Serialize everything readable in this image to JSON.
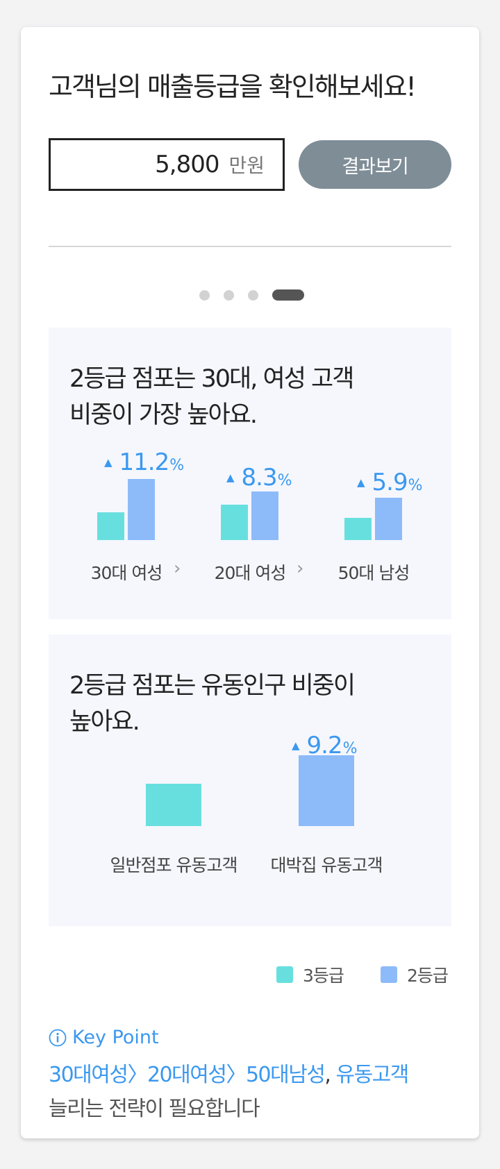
{
  "header": {
    "title": "고객님의 매출등급을 확인해보세요!"
  },
  "input": {
    "value": "5,800",
    "unit": "만원"
  },
  "result_button": {
    "label": "결과보기"
  },
  "carousel": {
    "total_pages": 4,
    "active_page": 4
  },
  "panel1": {
    "title_line1": "2등급 점포는 30대, 여성 고객",
    "title_line2": "비중이 가장 높아요.",
    "groups": [
      {
        "label": "30대 여성",
        "change": "11.2",
        "unit": "%",
        "grade3": 0.45,
        "grade2": 1.0
      },
      {
        "label": "20대 여성",
        "change": "8.3",
        "unit": "%",
        "grade3": 0.58,
        "grade2": 0.79
      },
      {
        "label": "50대 남성",
        "change": "5.9",
        "unit": "%",
        "grade3": 0.36,
        "grade2": 0.69
      }
    ],
    "separator": "›"
  },
  "panel2": {
    "title_line1": "2등급 점포는 유동인구 비중이",
    "title_line2": "높아요.",
    "bars": [
      {
        "label": "일반점포 유동고객",
        "grade": "3등급",
        "value": 0.6
      },
      {
        "label": "대박집 유동고객",
        "grade": "2등급",
        "value": 1.0,
        "change": "9.2",
        "unit": "%"
      }
    ]
  },
  "legend": [
    {
      "label": "3등급",
      "color": "#68dfdf"
    },
    {
      "label": "2등급",
      "color": "#8dbbf9"
    }
  ],
  "key_point": {
    "title": "Key Point",
    "icon": "info-icon",
    "highlight": "30대여성〉20대여성〉50대남성",
    "comma": ", ",
    "highlight2": "유동고객",
    "line2": "늘리는 전략이 필요합니다"
  },
  "colors": {
    "accent": "#3b98ef",
    "grade3": "#68dfdf",
    "grade2": "#8dbbf9",
    "button": "#7f8d97"
  }
}
